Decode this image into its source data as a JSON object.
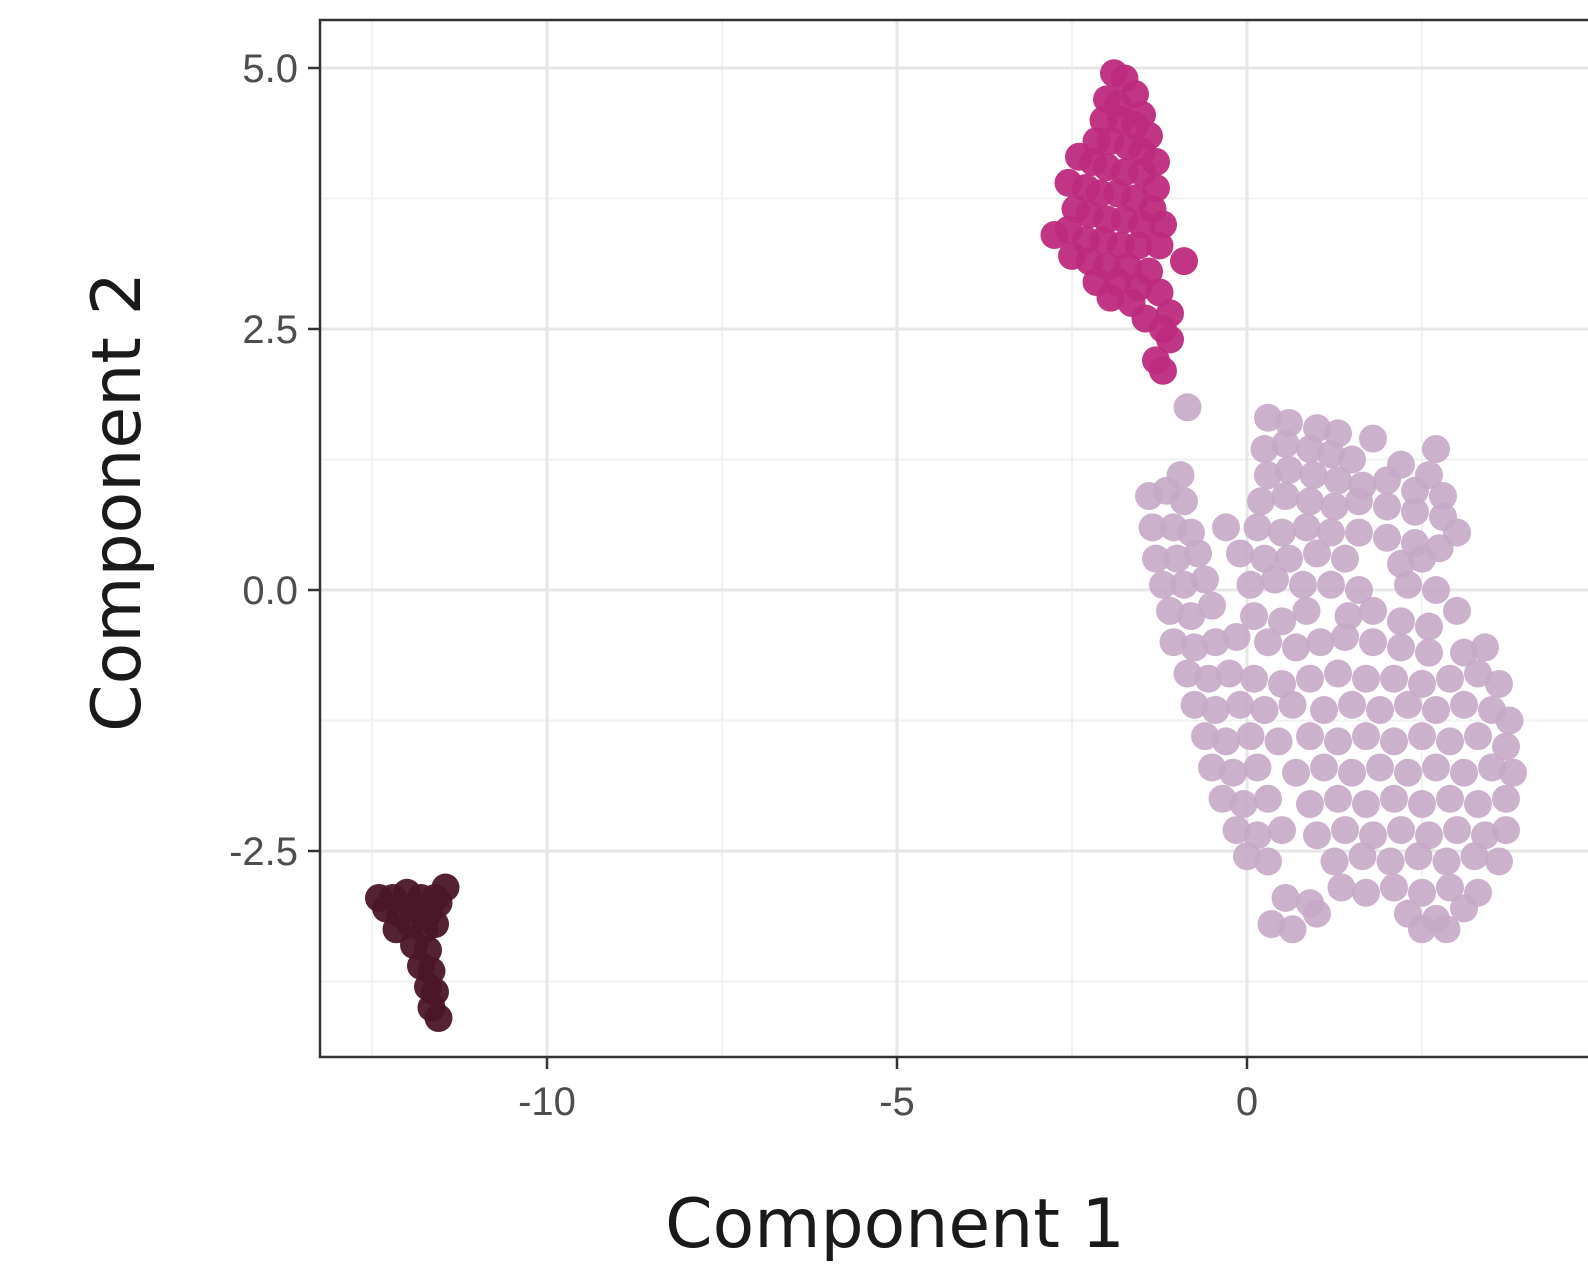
{
  "chart_data": {
    "type": "scatter",
    "title": "",
    "xlabel": "Component 1",
    "ylabel": "Component 2",
    "xlim": [
      -13.25,
      4.5
    ],
    "ylim": [
      -4.4,
      5.45
    ],
    "x_ticks": [
      -10,
      -5,
      0
    ],
    "x_tick_labels": [
      "-10",
      "-5",
      "0"
    ],
    "y_ticks": [
      -2.5,
      0.0,
      2.5,
      5.0
    ],
    "y_tick_labels": [
      "-2.5",
      "0.0",
      "2.5",
      "5.0"
    ],
    "grid": true,
    "legend": "none",
    "series": [
      {
        "color": "#4a1628",
        "opacity": 0.95,
        "points": [
          [
            -12.4,
            -2.95
          ],
          [
            -12.2,
            -2.95
          ],
          [
            -12.0,
            -2.9
          ],
          [
            -11.8,
            -2.95
          ],
          [
            -11.6,
            -2.95
          ],
          [
            -11.45,
            -2.85
          ],
          [
            -12.3,
            -3.05
          ],
          [
            -12.1,
            -3.1
          ],
          [
            -11.9,
            -3.05
          ],
          [
            -11.7,
            -3.1
          ],
          [
            -11.55,
            -3.0
          ],
          [
            -12.15,
            -3.25
          ],
          [
            -11.95,
            -3.2
          ],
          [
            -11.75,
            -3.25
          ],
          [
            -11.6,
            -3.2
          ],
          [
            -11.9,
            -3.4
          ],
          [
            -11.7,
            -3.45
          ],
          [
            -11.8,
            -3.6
          ],
          [
            -11.65,
            -3.65
          ],
          [
            -11.7,
            -3.8
          ],
          [
            -11.6,
            -3.85
          ],
          [
            -11.65,
            -4.0
          ],
          [
            -11.55,
            -4.1
          ]
        ]
      },
      {
        "color": "#bd2b7d",
        "opacity": 0.95,
        "points": [
          [
            -1.9,
            4.95
          ],
          [
            -1.75,
            4.9
          ],
          [
            -1.6,
            4.75
          ],
          [
            -2.0,
            4.7
          ],
          [
            -1.85,
            4.65
          ],
          [
            -1.5,
            4.55
          ],
          [
            -2.05,
            4.5
          ],
          [
            -1.8,
            4.5
          ],
          [
            -1.6,
            4.45
          ],
          [
            -1.4,
            4.35
          ],
          [
            -2.15,
            4.3
          ],
          [
            -1.95,
            4.3
          ],
          [
            -1.7,
            4.25
          ],
          [
            -1.5,
            4.2
          ],
          [
            -1.3,
            4.1
          ],
          [
            -2.4,
            4.15
          ],
          [
            -2.2,
            4.1
          ],
          [
            -2.0,
            4.05
          ],
          [
            -1.75,
            4.0
          ],
          [
            -1.5,
            4.0
          ],
          [
            -1.3,
            3.85
          ],
          [
            -2.55,
            3.9
          ],
          [
            -2.3,
            3.85
          ],
          [
            -2.1,
            3.8
          ],
          [
            -1.85,
            3.8
          ],
          [
            -1.6,
            3.75
          ],
          [
            -1.35,
            3.65
          ],
          [
            -2.45,
            3.65
          ],
          [
            -2.25,
            3.6
          ],
          [
            -2.0,
            3.55
          ],
          [
            -1.75,
            3.55
          ],
          [
            -1.5,
            3.5
          ],
          [
            -1.2,
            3.5
          ],
          [
            -2.75,
            3.4
          ],
          [
            -2.55,
            3.45
          ],
          [
            -2.3,
            3.35
          ],
          [
            -2.05,
            3.35
          ],
          [
            -1.8,
            3.3
          ],
          [
            -1.55,
            3.3
          ],
          [
            -1.25,
            3.3
          ],
          [
            -2.5,
            3.2
          ],
          [
            -2.25,
            3.15
          ],
          [
            -2.0,
            3.1
          ],
          [
            -1.7,
            3.1
          ],
          [
            -1.4,
            3.05
          ],
          [
            -0.9,
            3.15
          ],
          [
            -2.15,
            2.95
          ],
          [
            -1.85,
            2.95
          ],
          [
            -1.55,
            2.9
          ],
          [
            -1.25,
            2.85
          ],
          [
            -1.95,
            2.8
          ],
          [
            -1.65,
            2.75
          ],
          [
            -1.1,
            2.65
          ],
          [
            -1.45,
            2.6
          ],
          [
            -1.2,
            2.5
          ],
          [
            -1.1,
            2.4
          ],
          [
            -1.3,
            2.2
          ],
          [
            -1.2,
            2.1
          ]
        ]
      },
      {
        "color": "#c6a8c8",
        "opacity": 0.9,
        "points": [
          [
            -0.85,
            1.75
          ],
          [
            0.3,
            1.65
          ],
          [
            0.6,
            1.6
          ],
          [
            1.0,
            1.55
          ],
          [
            1.3,
            1.5
          ],
          [
            1.8,
            1.45
          ],
          [
            2.7,
            1.35
          ],
          [
            0.25,
            1.35
          ],
          [
            0.55,
            1.4
          ],
          [
            0.9,
            1.35
          ],
          [
            1.2,
            1.3
          ],
          [
            1.5,
            1.25
          ],
          [
            2.2,
            1.2
          ],
          [
            2.6,
            1.1
          ],
          [
            -0.95,
            1.1
          ],
          [
            0.3,
            1.1
          ],
          [
            0.6,
            1.15
          ],
          [
            0.95,
            1.1
          ],
          [
            1.3,
            1.05
          ],
          [
            1.65,
            1.0
          ],
          [
            2.0,
            1.05
          ],
          [
            2.4,
            0.95
          ],
          [
            2.8,
            0.9
          ],
          [
            -1.4,
            0.9
          ],
          [
            -1.15,
            0.95
          ],
          [
            -0.9,
            0.85
          ],
          [
            0.2,
            0.85
          ],
          [
            0.55,
            0.9
          ],
          [
            0.9,
            0.85
          ],
          [
            1.25,
            0.8
          ],
          [
            1.6,
            0.85
          ],
          [
            2.0,
            0.8
          ],
          [
            2.4,
            0.75
          ],
          [
            2.8,
            0.7
          ],
          [
            3.0,
            0.55
          ],
          [
            -1.35,
            0.6
          ],
          [
            -1.05,
            0.6
          ],
          [
            -0.8,
            0.55
          ],
          [
            -0.3,
            0.6
          ],
          [
            0.15,
            0.6
          ],
          [
            0.5,
            0.55
          ],
          [
            0.85,
            0.6
          ],
          [
            1.2,
            0.55
          ],
          [
            1.6,
            0.55
          ],
          [
            2.0,
            0.5
          ],
          [
            2.4,
            0.45
          ],
          [
            2.75,
            0.4
          ],
          [
            -1.3,
            0.3
          ],
          [
            -1.0,
            0.3
          ],
          [
            -0.7,
            0.35
          ],
          [
            -0.1,
            0.35
          ],
          [
            0.25,
            0.3
          ],
          [
            0.6,
            0.3
          ],
          [
            1.0,
            0.35
          ],
          [
            1.4,
            0.3
          ],
          [
            2.2,
            0.25
          ],
          [
            2.5,
            0.3
          ],
          [
            -1.2,
            0.05
          ],
          [
            -0.9,
            0.05
          ],
          [
            -0.6,
            0.1
          ],
          [
            0.05,
            0.05
          ],
          [
            0.4,
            0.1
          ],
          [
            0.8,
            0.05
          ],
          [
            1.2,
            0.05
          ],
          [
            1.6,
            0.0
          ],
          [
            2.3,
            0.05
          ],
          [
            2.7,
            0.0
          ],
          [
            3.0,
            -0.2
          ],
          [
            -1.1,
            -0.2
          ],
          [
            -0.8,
            -0.25
          ],
          [
            -0.5,
            -0.15
          ],
          [
            0.1,
            -0.25
          ],
          [
            0.5,
            -0.3
          ],
          [
            0.85,
            -0.2
          ],
          [
            1.45,
            -0.25
          ],
          [
            1.8,
            -0.2
          ],
          [
            2.2,
            -0.3
          ],
          [
            2.6,
            -0.35
          ],
          [
            -1.05,
            -0.5
          ],
          [
            -0.75,
            -0.55
          ],
          [
            -0.45,
            -0.5
          ],
          [
            -0.15,
            -0.45
          ],
          [
            0.3,
            -0.5
          ],
          [
            0.7,
            -0.55
          ],
          [
            1.05,
            -0.5
          ],
          [
            1.4,
            -0.45
          ],
          [
            1.8,
            -0.5
          ],
          [
            2.2,
            -0.55
          ],
          [
            2.6,
            -0.6
          ],
          [
            3.1,
            -0.6
          ],
          [
            3.4,
            -0.55
          ],
          [
            -0.85,
            -0.8
          ],
          [
            -0.55,
            -0.85
          ],
          [
            -0.25,
            -0.8
          ],
          [
            0.1,
            -0.85
          ],
          [
            0.5,
            -0.9
          ],
          [
            0.9,
            -0.85
          ],
          [
            1.3,
            -0.8
          ],
          [
            1.7,
            -0.85
          ],
          [
            2.1,
            -0.85
          ],
          [
            2.5,
            -0.9
          ],
          [
            2.9,
            -0.85
          ],
          [
            3.3,
            -0.8
          ],
          [
            3.6,
            -0.9
          ],
          [
            -0.75,
            -1.1
          ],
          [
            -0.45,
            -1.15
          ],
          [
            -0.1,
            -1.1
          ],
          [
            0.25,
            -1.15
          ],
          [
            0.65,
            -1.1
          ],
          [
            1.1,
            -1.15
          ],
          [
            1.5,
            -1.1
          ],
          [
            1.9,
            -1.15
          ],
          [
            2.3,
            -1.1
          ],
          [
            2.7,
            -1.15
          ],
          [
            3.1,
            -1.1
          ],
          [
            3.5,
            -1.15
          ],
          [
            3.75,
            -1.25
          ],
          [
            -0.6,
            -1.4
          ],
          [
            -0.3,
            -1.45
          ],
          [
            0.05,
            -1.4
          ],
          [
            0.45,
            -1.45
          ],
          [
            0.9,
            -1.4
          ],
          [
            1.3,
            -1.45
          ],
          [
            1.7,
            -1.4
          ],
          [
            2.1,
            -1.45
          ],
          [
            2.5,
            -1.4
          ],
          [
            2.9,
            -1.45
          ],
          [
            3.3,
            -1.4
          ],
          [
            3.7,
            -1.5
          ],
          [
            -0.5,
            -1.7
          ],
          [
            -0.2,
            -1.75
          ],
          [
            0.15,
            -1.7
          ],
          [
            0.7,
            -1.75
          ],
          [
            1.1,
            -1.7
          ],
          [
            1.5,
            -1.75
          ],
          [
            1.9,
            -1.7
          ],
          [
            2.3,
            -1.75
          ],
          [
            2.7,
            -1.7
          ],
          [
            3.1,
            -1.75
          ],
          [
            3.5,
            -1.7
          ],
          [
            3.8,
            -1.75
          ],
          [
            -0.35,
            -2.0
          ],
          [
            -0.05,
            -2.05
          ],
          [
            0.3,
            -2.0
          ],
          [
            0.9,
            -2.05
          ],
          [
            1.3,
            -2.0
          ],
          [
            1.7,
            -2.05
          ],
          [
            2.1,
            -2.0
          ],
          [
            2.5,
            -2.05
          ],
          [
            2.9,
            -2.0
          ],
          [
            3.3,
            -2.05
          ],
          [
            3.7,
            -2.0
          ],
          [
            -0.15,
            -2.3
          ],
          [
            0.15,
            -2.35
          ],
          [
            0.5,
            -2.3
          ],
          [
            1.0,
            -2.35
          ],
          [
            1.4,
            -2.3
          ],
          [
            1.8,
            -2.35
          ],
          [
            2.2,
            -2.3
          ],
          [
            2.6,
            -2.35
          ],
          [
            3.0,
            -2.3
          ],
          [
            3.4,
            -2.35
          ],
          [
            3.7,
            -2.3
          ],
          [
            0.0,
            -2.55
          ],
          [
            0.3,
            -2.6
          ],
          [
            1.25,
            -2.6
          ],
          [
            1.65,
            -2.55
          ],
          [
            2.05,
            -2.6
          ],
          [
            2.45,
            -2.55
          ],
          [
            2.85,
            -2.6
          ],
          [
            3.25,
            -2.55
          ],
          [
            3.6,
            -2.6
          ],
          [
            1.35,
            -2.85
          ],
          [
            1.7,
            -2.9
          ],
          [
            2.1,
            -2.85
          ],
          [
            2.5,
            -2.9
          ],
          [
            2.9,
            -2.85
          ],
          [
            3.3,
            -2.9
          ],
          [
            0.55,
            -2.95
          ],
          [
            0.9,
            -3.0
          ],
          [
            2.3,
            -3.1
          ],
          [
            2.7,
            -3.15
          ],
          [
            3.1,
            -3.05
          ],
          [
            0.35,
            -3.2
          ],
          [
            0.65,
            -3.25
          ],
          [
            1.0,
            -3.1
          ],
          [
            2.5,
            -3.25
          ],
          [
            2.85,
            -3.25
          ]
        ]
      }
    ]
  }
}
